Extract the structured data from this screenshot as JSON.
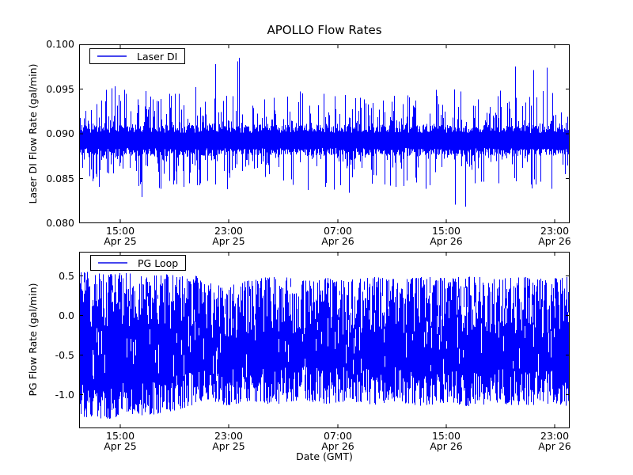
{
  "figure": {
    "title": "APOLLO Flow Rates",
    "background": "#ffffff",
    "line_color": "#0000ff",
    "legend_sample_color": "#4646ee",
    "axes_frame_color": "#000000",
    "text_color": "#000000"
  },
  "chart_data": [
    {
      "type": "line",
      "title": "APOLLO Flow Rates",
      "legend_label": "Laser DI",
      "legend_position": "upper left",
      "ylabel": "Laser DI Flow Rate (gal/min)",
      "ylim": [
        0.08,
        0.1
      ],
      "grid": false,
      "yticks": [
        {
          "value": 0.1,
          "label": "0.100"
        },
        {
          "value": 0.095,
          "label": "0.095"
        },
        {
          "value": 0.09,
          "label": "0.090"
        },
        {
          "value": 0.085,
          "label": "0.085"
        },
        {
          "value": 0.08,
          "label": "0.080"
        }
      ],
      "xticks": [
        {
          "x_frac": 0.0839,
          "time": "15:00",
          "date": "Apr 25"
        },
        {
          "x_frac": 0.3048,
          "time": "23:00",
          "date": "Apr 25"
        },
        {
          "x_frac": 0.5274,
          "time": "07:00",
          "date": "Apr 26"
        },
        {
          "x_frac": 0.7484,
          "time": "15:00",
          "date": "Apr 26"
        },
        {
          "x_frac": 0.9694,
          "time": "23:00",
          "date": "Apr 26"
        }
      ],
      "signal": {
        "kind": "baseline",
        "seed": 1337,
        "baseline_mean": 0.0893,
        "core_band": [
          0.0884,
          0.0903
        ],
        "observed_min": 0.081,
        "observed_max": 0.099,
        "hi_base": 0.0901,
        "hi_jitter": 0.0009,
        "lo_base": 0.0884,
        "lo_jitter": 0.0009,
        "p_up": 0.55,
        "up_pow": 2.2,
        "up_amp": 0.0045,
        "p_dn": 0.5,
        "dn_pow": 2.2,
        "dn_amp": 0.004,
        "big_p_up": 0.022,
        "big_up_min": 0.094,
        "big_up_amp": 0.0052,
        "big_p_dn": 0.015,
        "big_dn_max": 0.085,
        "big_dn_amp": 0.0038
      }
    },
    {
      "type": "line",
      "legend_label": "PG Loop",
      "legend_position": "upper left",
      "ylabel": "PG Flow Rate (gal/min)",
      "xlabel": "Date (GMT)",
      "ylim": [
        -1.425,
        0.805
      ],
      "grid": false,
      "yticks": [
        {
          "value": 0.5,
          "label": "0.5"
        },
        {
          "value": 0.0,
          "label": "0.0"
        },
        {
          "value": -0.5,
          "label": "-0.5"
        },
        {
          "value": -1.0,
          "label": "-1.0"
        }
      ],
      "xticks": [
        {
          "x_frac": 0.0839,
          "time": "15:00",
          "date": "Apr 25"
        },
        {
          "x_frac": 0.3048,
          "time": "23:00",
          "date": "Apr 25"
        },
        {
          "x_frac": 0.5274,
          "time": "07:00",
          "date": "Apr 26"
        },
        {
          "x_frac": 0.7484,
          "time": "15:00",
          "date": "Apr 26"
        },
        {
          "x_frac": 0.9694,
          "time": "23:00",
          "date": "Apr 26"
        }
      ],
      "signal": {
        "kind": "envelope",
        "seed": 4242,
        "dense_band": [
          -0.9,
          0.25
        ],
        "observed_min": -1.34,
        "observed_max": 0.62,
        "upper_envelope": [
          [
            0,
            0.62
          ],
          [
            0.015,
            0.56
          ],
          [
            0.05,
            0.52
          ],
          [
            0.1,
            0.54
          ],
          [
            0.15,
            0.5
          ],
          [
            0.2,
            0.54
          ],
          [
            0.24,
            0.5
          ],
          [
            0.27,
            0.4
          ],
          [
            0.31,
            0.38
          ],
          [
            0.35,
            0.45
          ],
          [
            0.4,
            0.5
          ],
          [
            0.45,
            0.46
          ],
          [
            0.5,
            0.49
          ],
          [
            0.55,
            0.45
          ],
          [
            0.6,
            0.49
          ],
          [
            0.65,
            0.46
          ],
          [
            0.7,
            0.5
          ],
          [
            0.75,
            0.47
          ],
          [
            0.8,
            0.5
          ],
          [
            0.85,
            0.46
          ],
          [
            0.9,
            0.49
          ],
          [
            0.95,
            0.46
          ],
          [
            1,
            0.49
          ]
        ],
        "lower_envelope": [
          [
            0,
            -1.34
          ],
          [
            0.02,
            -1.28
          ],
          [
            0.06,
            -1.31
          ],
          [
            0.1,
            -1.24
          ],
          [
            0.14,
            -1.27
          ],
          [
            0.18,
            -1.22
          ],
          [
            0.22,
            -1.16
          ],
          [
            0.26,
            -1.06
          ],
          [
            0.3,
            -1.14
          ],
          [
            0.35,
            -1.08
          ],
          [
            0.4,
            -1.13
          ],
          [
            0.45,
            -1.07
          ],
          [
            0.5,
            -1.12
          ],
          [
            0.55,
            -1.08
          ],
          [
            0.6,
            -1.13
          ],
          [
            0.65,
            -1.09
          ],
          [
            0.7,
            -1.15
          ],
          [
            0.75,
            -1.1
          ],
          [
            0.8,
            -1.16
          ],
          [
            0.85,
            -1.1
          ],
          [
            0.9,
            -1.15
          ],
          [
            0.95,
            -1.11
          ],
          [
            1,
            -1.17
          ]
        ],
        "edge_pow": 1.8,
        "edge_amp_hi": 0.7,
        "edge_amp_lo": 0.45,
        "gap_p": 0.25,
        "gap_h_min": 0.08,
        "gap_h_rand": 0.3
      }
    }
  ]
}
